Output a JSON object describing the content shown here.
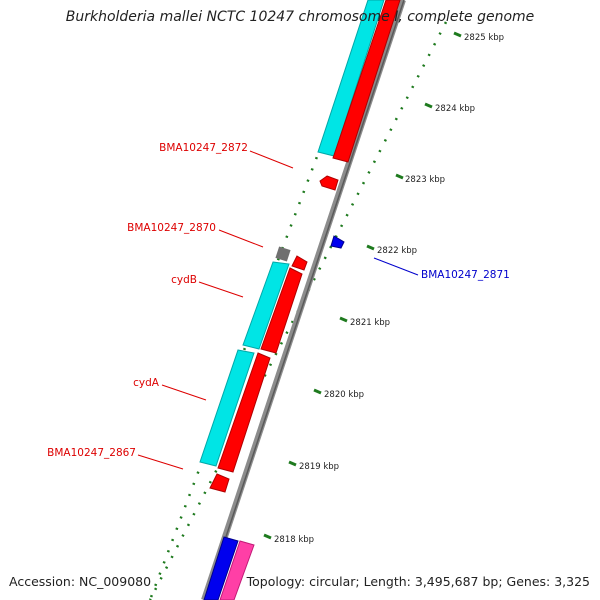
{
  "title": "Burkholderia mallei NCTC 10247 chromosome I, complete genome",
  "footer": {
    "accession": "Accession: NC_009080",
    "summary": "Topology: circular; Length: 3,495,687 bp; Genes: 3,325"
  },
  "scale": {
    "ticks": [
      "2825 kbp",
      "2824 kbp",
      "2823 kbp",
      "2822 kbp",
      "2821 kbp",
      "2820 kbp",
      "2819 kbp",
      "2818 kbp"
    ]
  },
  "genes": [
    {
      "label": "BMA10247_2872",
      "strand": "reverse",
      "color": "#dd0000"
    },
    {
      "label": "BMA10247_2870",
      "strand": "reverse",
      "color": "#dd0000"
    },
    {
      "label": "cydB",
      "strand": "reverse",
      "color": "#dd0000"
    },
    {
      "label": "cydA",
      "strand": "reverse",
      "color": "#dd0000"
    },
    {
      "label": "BMA10247_2867",
      "strand": "reverse",
      "color": "#dd0000"
    },
    {
      "label": "BMA10247_2871",
      "strand": "forward",
      "color": "#0000cc"
    }
  ],
  "colors": {
    "gene_reverse": "#ff0000",
    "gene_forward": "#0000ee",
    "cds_feature": "#00e5e5",
    "backbone": "#8c8c8c",
    "tick_mark": "#1e7a1e",
    "pseudo_feature": "#707070",
    "pink_feature": "#ff3fa6"
  }
}
